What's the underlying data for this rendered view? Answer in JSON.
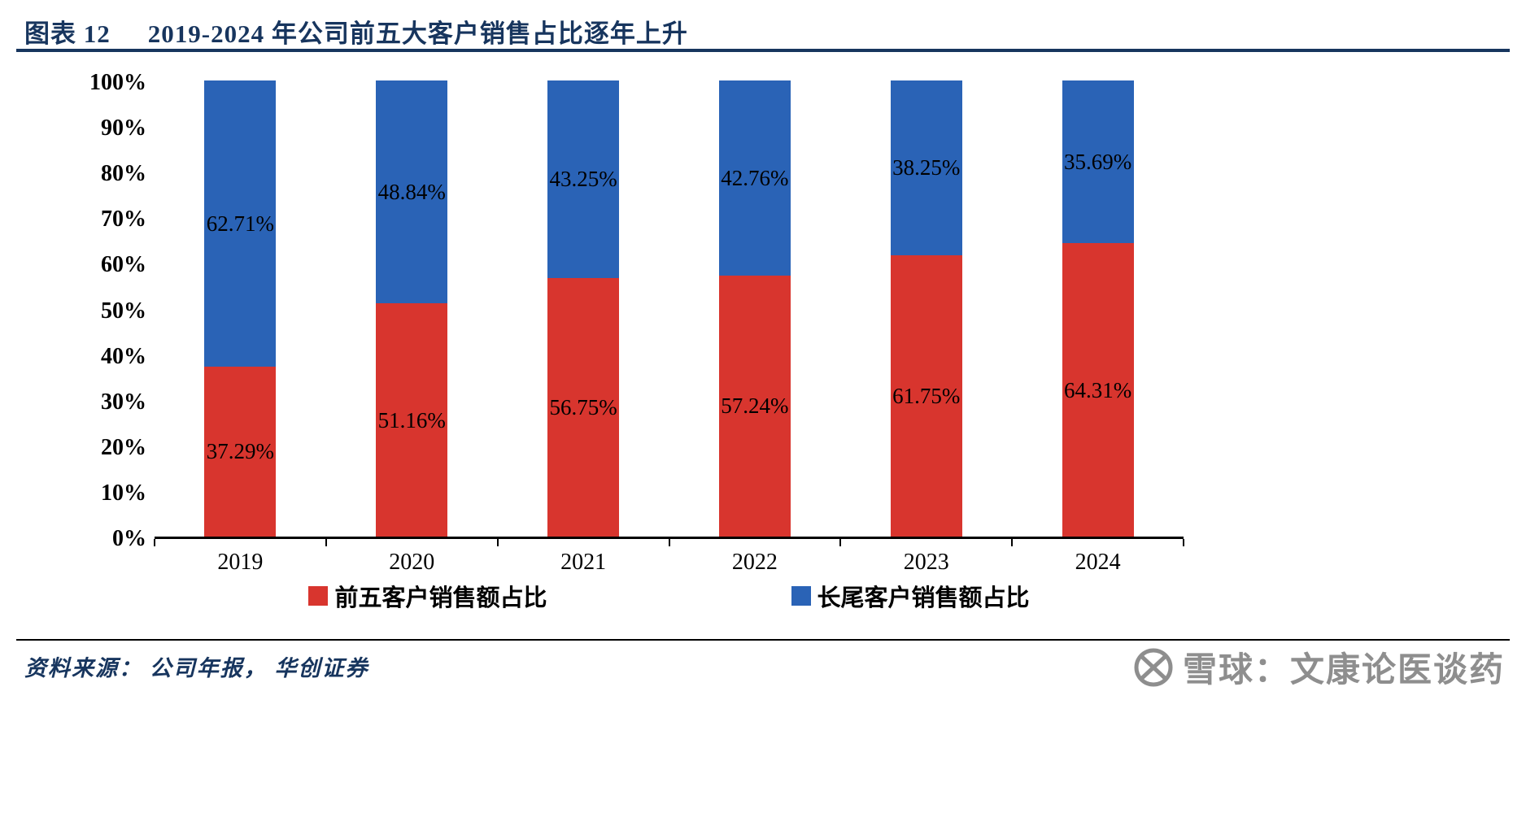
{
  "header": {
    "figure_label": "图表  12",
    "title": "2019-2024 年公司前五大客户销售占比逐年上升"
  },
  "chart_data": {
    "type": "bar",
    "stacked": true,
    "title": "2019-2024 年公司前五大客户销售占比逐年上升",
    "categories": [
      "2019",
      "2020",
      "2021",
      "2022",
      "2023",
      "2024"
    ],
    "series": [
      {
        "name": "前五客户销售额占比",
        "color": "#d8352e",
        "values": [
          37.29,
          51.16,
          56.75,
          57.24,
          61.75,
          64.31
        ]
      },
      {
        "name": "长尾客户销售额占比",
        "color": "#2a63b6",
        "values": [
          62.71,
          48.84,
          43.25,
          42.76,
          38.25,
          35.69
        ]
      }
    ],
    "xlabel": "",
    "ylabel": "",
    "ylim": [
      0,
      100
    ],
    "ytick_step": 10,
    "ytick_suffix": "%",
    "value_label_suffix": "%",
    "grid": false,
    "legend_position": "bottom"
  },
  "legend": [
    {
      "label": "前五客户销售额占比",
      "color": "#d8352e"
    },
    {
      "label": "长尾客户销售额占比",
      "color": "#2a63b6"
    }
  ],
  "footer": {
    "source": "资料来源：  公司年报，  华创证券"
  },
  "watermark": {
    "text": "雪球：文康论医谈药"
  },
  "colors": {
    "title": "#17355e",
    "red": "#d8352e",
    "blue": "#2a63b6",
    "watermark_gray": "#8e8e8e"
  }
}
